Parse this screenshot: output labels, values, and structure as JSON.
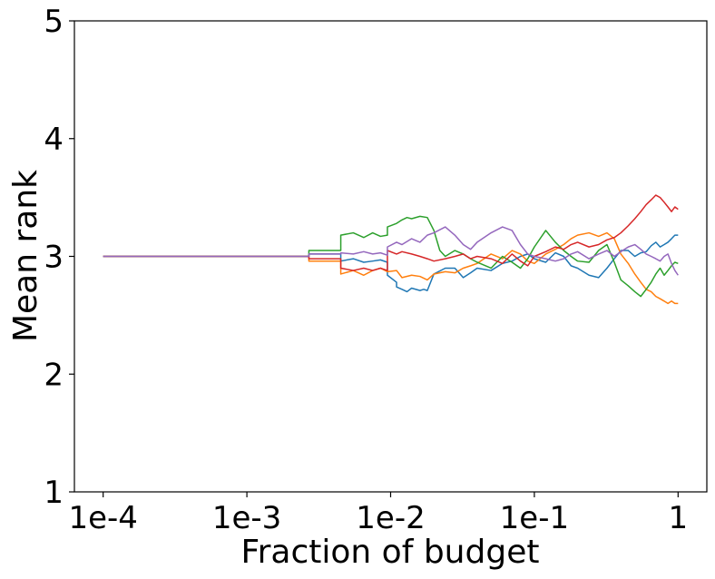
{
  "chart_data": {
    "type": "line",
    "title": "",
    "xlabel": "Fraction of budget",
    "ylabel": "Mean rank",
    "x_scale": "log",
    "xlim": [
      0.0001,
      1
    ],
    "ylim": [
      1,
      5
    ],
    "x_ticks": [
      {
        "value": 0.0001,
        "label": "1e-4"
      },
      {
        "value": 0.001,
        "label": "1e-3"
      },
      {
        "value": 0.01,
        "label": "1e-2"
      },
      {
        "value": 0.1,
        "label": "1e-1"
      },
      {
        "value": 1,
        "label": "1"
      }
    ],
    "y_ticks": [
      {
        "value": 1,
        "label": "1"
      },
      {
        "value": 2,
        "label": "2"
      },
      {
        "value": 3,
        "label": "3"
      },
      {
        "value": 4,
        "label": "4"
      },
      {
        "value": 5,
        "label": "5"
      }
    ],
    "grid": false,
    "legend": "none",
    "series": [
      {
        "color": "#1f77b4",
        "x": [
          0.0001,
          0.0027,
          0.0027,
          0.0045,
          0.0045,
          0.0055,
          0.0065,
          0.0075,
          0.0085,
          0.0095,
          0.0095,
          0.011,
          0.011,
          0.012,
          0.013,
          0.014,
          0.016,
          0.017,
          0.018,
          0.02,
          0.024,
          0.028,
          0.032,
          0.036,
          0.04,
          0.05,
          0.06,
          0.07,
          0.08,
          0.09,
          0.1,
          0.12,
          0.14,
          0.16,
          0.18,
          0.2,
          0.24,
          0.28,
          0.32,
          0.36,
          0.4,
          0.45,
          0.5,
          0.55,
          0.6,
          0.65,
          0.7,
          0.75,
          0.8,
          0.85,
          0.9,
          0.95,
          1.0
        ],
        "y": [
          3.0,
          3.0,
          3.02,
          3.02,
          2.96,
          2.98,
          2.95,
          2.96,
          2.97,
          2.95,
          2.84,
          2.78,
          2.74,
          2.72,
          2.7,
          2.73,
          2.71,
          2.72,
          2.71,
          2.85,
          2.9,
          2.9,
          2.82,
          2.86,
          2.9,
          2.88,
          2.94,
          2.96,
          3.0,
          3.02,
          2.98,
          2.95,
          3.03,
          3.0,
          2.92,
          2.9,
          2.84,
          2.82,
          2.9,
          2.98,
          3.05,
          3.05,
          3.0,
          3.03,
          3.04,
          3.09,
          3.12,
          3.08,
          3.1,
          3.12,
          3.15,
          3.18,
          3.18
        ]
      },
      {
        "color": "#ff7f0e",
        "x": [
          0.0001,
          0.0027,
          0.0027,
          0.0045,
          0.0045,
          0.0055,
          0.0065,
          0.0075,
          0.0085,
          0.0095,
          0.011,
          0.012,
          0.014,
          0.016,
          0.018,
          0.02,
          0.024,
          0.028,
          0.032,
          0.036,
          0.04,
          0.05,
          0.06,
          0.07,
          0.08,
          0.09,
          0.1,
          0.12,
          0.14,
          0.16,
          0.18,
          0.2,
          0.24,
          0.28,
          0.32,
          0.36,
          0.4,
          0.45,
          0.5,
          0.55,
          0.6,
          0.65,
          0.7,
          0.75,
          0.8,
          0.85,
          0.9,
          0.95,
          1.0
        ],
        "y": [
          3.0,
          3.0,
          2.96,
          2.96,
          2.85,
          2.88,
          2.84,
          2.88,
          2.9,
          2.87,
          2.88,
          2.82,
          2.84,
          2.83,
          2.8,
          2.85,
          2.87,
          2.86,
          2.9,
          2.92,
          2.94,
          3.02,
          2.98,
          3.05,
          3.02,
          2.96,
          2.94,
          3.02,
          3.06,
          3.1,
          3.15,
          3.18,
          3.2,
          3.17,
          3.2,
          3.15,
          3.02,
          2.94,
          2.85,
          2.78,
          2.72,
          2.7,
          2.66,
          2.64,
          2.62,
          2.6,
          2.62,
          2.6,
          2.6
        ]
      },
      {
        "color": "#2ca02c",
        "x": [
          0.0001,
          0.0027,
          0.0027,
          0.0045,
          0.0045,
          0.0055,
          0.0065,
          0.0075,
          0.0085,
          0.0095,
          0.0095,
          0.011,
          0.012,
          0.013,
          0.014,
          0.016,
          0.018,
          0.02,
          0.022,
          0.024,
          0.028,
          0.032,
          0.036,
          0.04,
          0.05,
          0.06,
          0.07,
          0.08,
          0.09,
          0.1,
          0.12,
          0.14,
          0.16,
          0.18,
          0.2,
          0.24,
          0.28,
          0.32,
          0.36,
          0.4,
          0.45,
          0.5,
          0.55,
          0.6,
          0.65,
          0.7,
          0.75,
          0.8,
          0.85,
          0.9,
          0.95,
          1.0
        ],
        "y": [
          3.0,
          3.0,
          3.05,
          3.05,
          3.18,
          3.2,
          3.16,
          3.2,
          3.17,
          3.18,
          3.25,
          3.28,
          3.31,
          3.33,
          3.32,
          3.34,
          3.33,
          3.22,
          3.05,
          3.0,
          3.05,
          3.02,
          2.98,
          2.95,
          2.9,
          3.0,
          2.95,
          2.9,
          2.98,
          3.08,
          3.22,
          3.12,
          3.05,
          3.0,
          2.96,
          2.95,
          3.05,
          3.1,
          2.95,
          2.8,
          2.75,
          2.7,
          2.66,
          2.72,
          2.78,
          2.85,
          2.9,
          2.84,
          2.88,
          2.92,
          2.95,
          2.94
        ]
      },
      {
        "color": "#d62728",
        "x": [
          0.0001,
          0.0027,
          0.0027,
          0.0045,
          0.0045,
          0.0055,
          0.0065,
          0.0075,
          0.0085,
          0.0095,
          0.0095,
          0.011,
          0.012,
          0.014,
          0.016,
          0.018,
          0.02,
          0.024,
          0.028,
          0.032,
          0.036,
          0.04,
          0.05,
          0.06,
          0.07,
          0.08,
          0.09,
          0.1,
          0.12,
          0.14,
          0.16,
          0.18,
          0.2,
          0.24,
          0.28,
          0.32,
          0.36,
          0.4,
          0.45,
          0.5,
          0.55,
          0.6,
          0.65,
          0.7,
          0.75,
          0.8,
          0.85,
          0.9,
          0.95,
          1.0
        ],
        "y": [
          3.0,
          3.0,
          2.98,
          2.98,
          2.9,
          2.88,
          2.9,
          2.88,
          2.9,
          2.88,
          3.05,
          3.02,
          3.04,
          3.02,
          3.0,
          2.98,
          2.96,
          2.98,
          3.0,
          3.02,
          2.98,
          3.0,
          2.98,
          2.94,
          3.02,
          2.96,
          2.92,
          3.0,
          3.04,
          3.08,
          3.06,
          3.1,
          3.12,
          3.08,
          3.1,
          3.14,
          3.16,
          3.2,
          3.26,
          3.32,
          3.38,
          3.44,
          3.48,
          3.52,
          3.5,
          3.46,
          3.42,
          3.38,
          3.42,
          3.4
        ]
      },
      {
        "color": "#9467bd",
        "x": [
          0.0001,
          0.0027,
          0.0027,
          0.0045,
          0.0045,
          0.0055,
          0.0065,
          0.0075,
          0.0085,
          0.0095,
          0.0095,
          0.011,
          0.012,
          0.014,
          0.016,
          0.018,
          0.02,
          0.024,
          0.028,
          0.032,
          0.036,
          0.04,
          0.05,
          0.06,
          0.07,
          0.08,
          0.09,
          0.1,
          0.12,
          0.14,
          0.16,
          0.18,
          0.2,
          0.24,
          0.28,
          0.32,
          0.36,
          0.4,
          0.45,
          0.5,
          0.55,
          0.6,
          0.65,
          0.7,
          0.75,
          0.8,
          0.85,
          0.9,
          0.95,
          1.0
        ],
        "y": [
          3.0,
          3.0,
          3.02,
          3.02,
          3.03,
          3.02,
          3.04,
          3.02,
          3.03,
          3.01,
          3.08,
          3.12,
          3.1,
          3.15,
          3.12,
          3.18,
          3.2,
          3.25,
          3.18,
          3.1,
          3.06,
          3.12,
          3.2,
          3.25,
          3.22,
          3.1,
          3.02,
          3.0,
          2.98,
          2.96,
          2.98,
          3.02,
          3.04,
          2.98,
          3.02,
          3.05,
          3.0,
          3.04,
          3.08,
          3.1,
          3.06,
          3.02,
          3.0,
          2.98,
          2.96,
          3.0,
          3.02,
          2.94,
          2.88,
          2.84
        ]
      }
    ]
  }
}
